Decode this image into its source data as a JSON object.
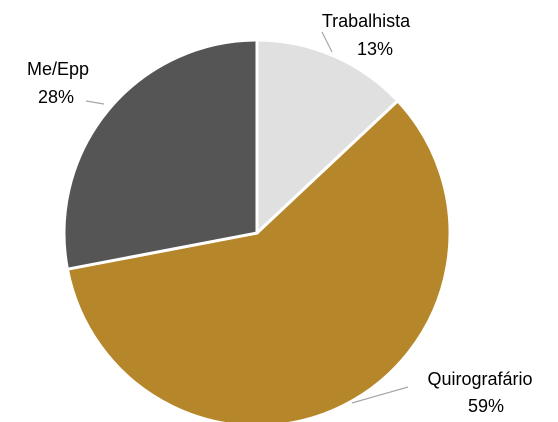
{
  "chart_data": {
    "type": "pie",
    "categories": [
      "Trabalhista",
      "Quirografário",
      "Me/Epp"
    ],
    "values": [
      13,
      59,
      28
    ],
    "value_labels": [
      "13%",
      "59%",
      "28%"
    ],
    "colors": [
      "#e0e0e0",
      "#b5862a",
      "#555555"
    ]
  }
}
